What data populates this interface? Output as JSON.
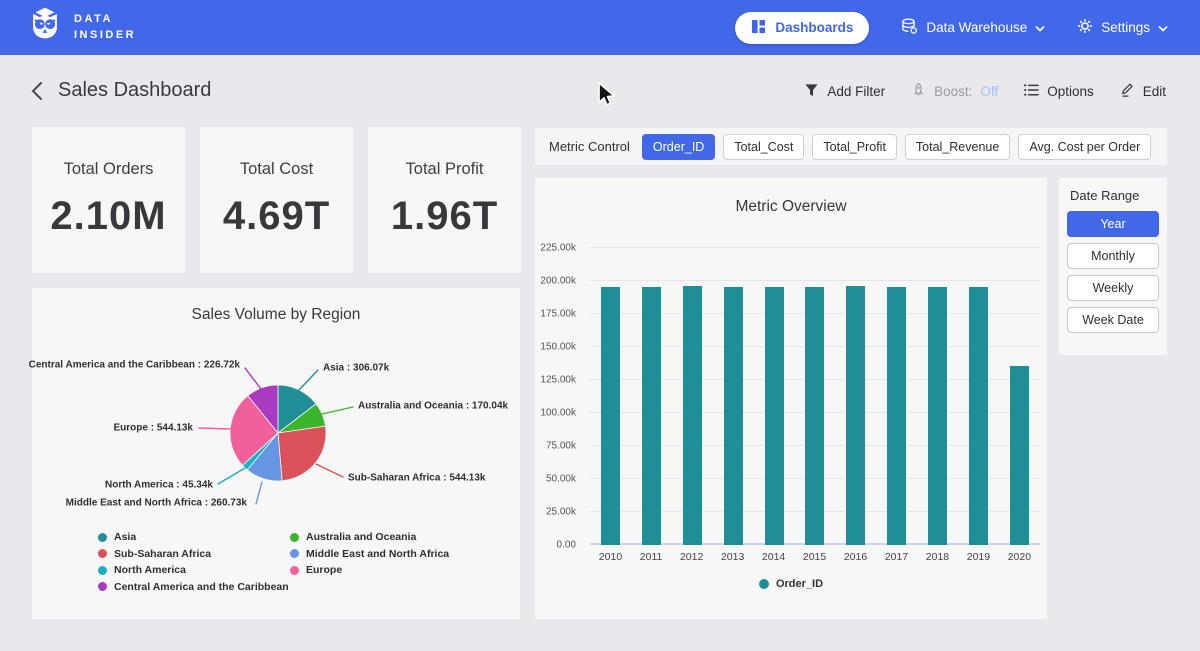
{
  "navbar": {
    "brand_line1": "DATA",
    "brand_line2": "INSIDER",
    "dashboards_label": "Dashboards",
    "data_warehouse_label": "Data Warehouse",
    "settings_label": "Settings"
  },
  "header": {
    "title": "Sales Dashboard",
    "add_filter": "Add Filter",
    "boost_label": "Boost:",
    "boost_value": "Off",
    "options_label": "Options",
    "edit_label": "Edit"
  },
  "kpis": [
    {
      "label": "Total Orders",
      "value": "2.10M"
    },
    {
      "label": "Total Cost",
      "value": "4.69T"
    },
    {
      "label": "Total Profit",
      "value": "1.96T"
    }
  ],
  "metric_control": {
    "label": "Metric Control",
    "options": [
      {
        "label": "Order_ID",
        "selected": true
      },
      {
        "label": "Total_Cost",
        "selected": false
      },
      {
        "label": "Total_Profit",
        "selected": false
      },
      {
        "label": "Total_Revenue",
        "selected": false
      },
      {
        "label": "Avg. Cost per Order",
        "selected": false
      }
    ]
  },
  "date_range": {
    "label": "Date Range",
    "options": [
      {
        "label": "Year",
        "selected": true
      },
      {
        "label": "Monthly",
        "selected": false
      },
      {
        "label": "Weekly",
        "selected": false
      },
      {
        "label": "Week Date",
        "selected": false
      }
    ]
  },
  "colors": {
    "navbar": "#4268ea",
    "accent": "#4268ea",
    "page_bg": "#e9e8ed",
    "card_bg": "#f7f7f7",
    "bar": "#1f8e96",
    "boost_off_text": "#a6bff5"
  },
  "chart_data": [
    {
      "type": "bar",
      "title": "Metric Overview",
      "categories": [
        "2010",
        "2011",
        "2012",
        "2013",
        "2014",
        "2015",
        "2016",
        "2017",
        "2018",
        "2019",
        "2020"
      ],
      "series": [
        {
          "name": "Order_ID",
          "color": "#1f8e96",
          "values": [
            195500,
            195500,
            196500,
            195300,
            195500,
            195400,
            196400,
            195600,
            195400,
            195500,
            135500
          ]
        }
      ],
      "xlabel": "",
      "ylabel": "",
      "ylim": [
        0,
        225000
      ],
      "yticks": [
        0,
        25000,
        50000,
        75000,
        100000,
        125000,
        150000,
        175000,
        200000,
        225000
      ],
      "ytick_labels": [
        "0.00",
        "25.00k",
        "50.00k",
        "75.00k",
        "100.00k",
        "125.00k",
        "150.00k",
        "175.00k",
        "200.00k",
        "225.00k"
      ],
      "grid": true,
      "legend_position": "bottom"
    },
    {
      "type": "pie",
      "title": "Sales Volume by Region",
      "slices": [
        {
          "name": "Asia",
          "value": 306070,
          "label": "Asia : 306.07k",
          "color": "#1f8e96"
        },
        {
          "name": "Australia and Oceania",
          "value": 170040,
          "label": "Australia and Oceania : 170.04k",
          "color": "#3cb42c"
        },
        {
          "name": "Sub-Saharan Africa",
          "value": 544130,
          "label": "Sub-Saharan Africa : 544.13k",
          "color": "#db5159"
        },
        {
          "name": "Middle East and North Africa",
          "value": 260730,
          "label": "Middle East and North Africa : 260.73k",
          "color": "#6695e2"
        },
        {
          "name": "North America",
          "value": 45340,
          "label": "North America : 45.34k",
          "color": "#16b0c4"
        },
        {
          "name": "Europe",
          "value": 544130,
          "label": "Europe : 544.13k",
          "color": "#f2609c"
        },
        {
          "name": "Central America and the Caribbean",
          "value": 226720,
          "label": "Central America and the Caribbean : 226.72k",
          "color": "#aa3ac0"
        }
      ],
      "legend_columns": [
        [
          "Asia",
          "Sub-Saharan Africa",
          "North America",
          "Central America and the Caribbean"
        ],
        [
          "Australia and Oceania",
          "Middle East and North Africa",
          "Europe"
        ]
      ],
      "legend_position": "bottom"
    }
  ]
}
